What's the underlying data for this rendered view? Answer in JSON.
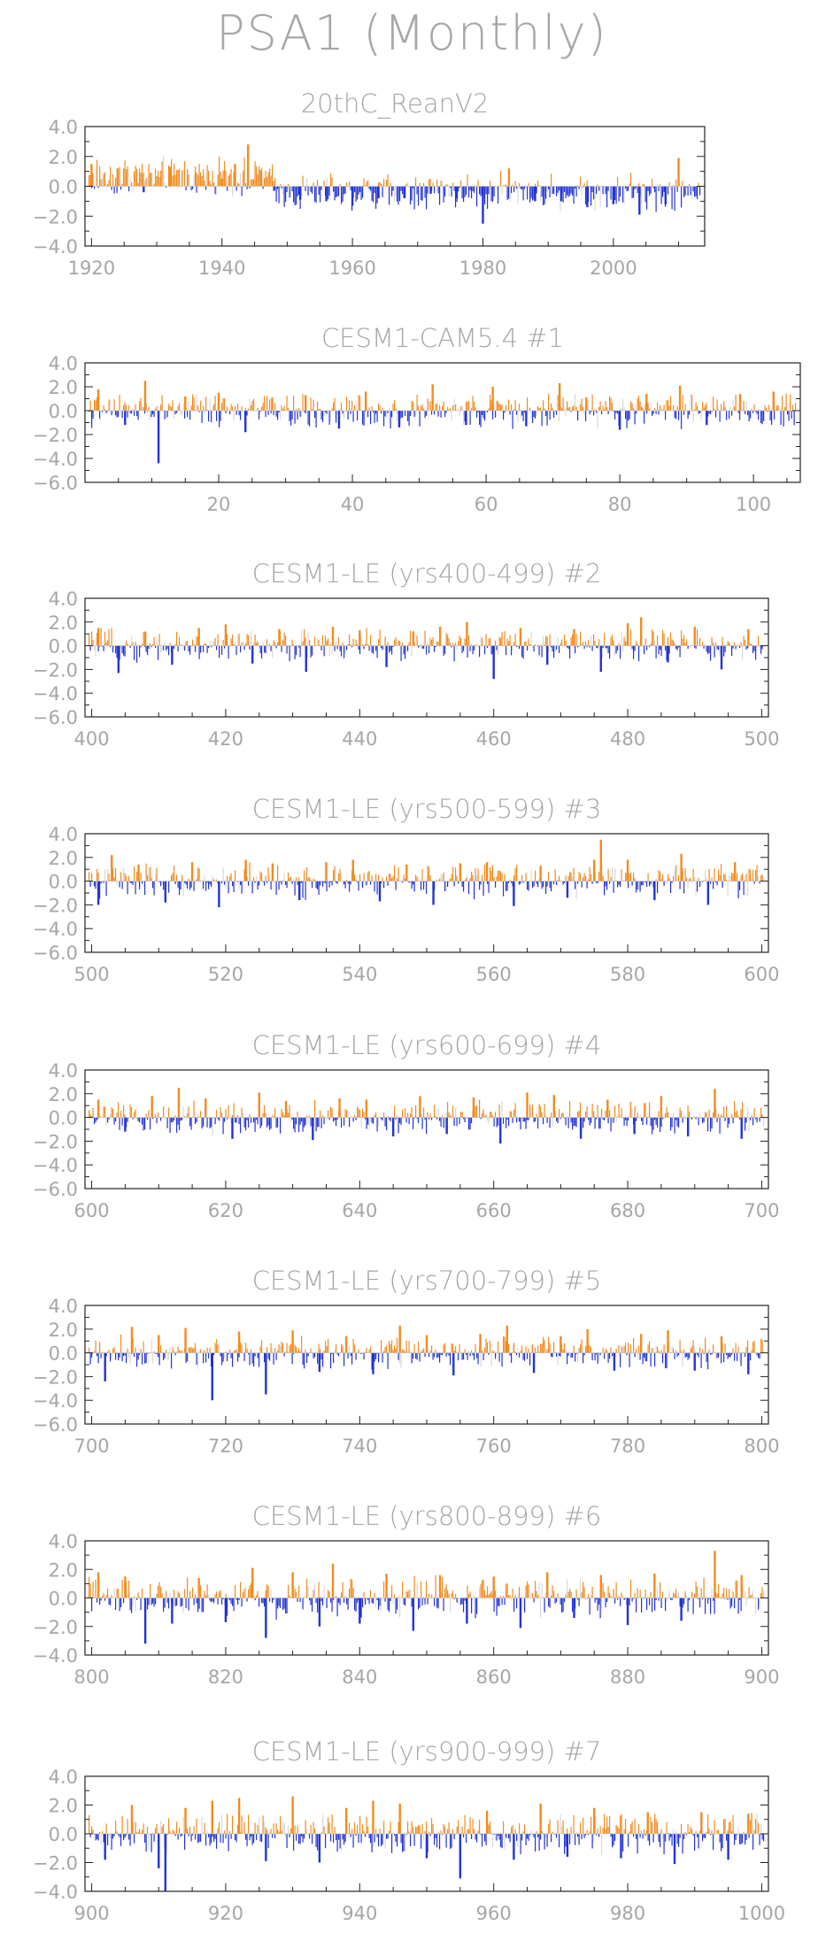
{
  "page": {
    "title": "PSA1 (Monthly)"
  },
  "colors": {
    "positive": "#f28b1e",
    "negative": "#2233d4",
    "axis": "#222222",
    "text": "#a6a6a6"
  },
  "chart_data": [
    {
      "type": "bar",
      "title": "20thC_ReanV2",
      "xlim": [
        1919,
        2014
      ],
      "ylim": [
        -4.0,
        4.0
      ],
      "yticks": [
        4.0,
        2.0,
        0.0,
        -2.0,
        -4.0
      ],
      "yticklabels": [
        "4.0",
        "2.0",
        "0.0",
        "−2.0",
        "−4.0"
      ],
      "xticks": [
        1920,
        1940,
        1960,
        1980,
        2000
      ],
      "xticklabels": [
        "1920",
        "1940",
        "1960",
        "1980",
        "2000"
      ],
      "x": [
        1920,
        1924,
        1928,
        1932,
        1936,
        1940,
        1942,
        1944,
        1946,
        1948,
        1952,
        1956,
        1960,
        1964,
        1968,
        1972,
        1976,
        1980,
        1984,
        1988,
        1992,
        1996,
        2000,
        2004,
        2008,
        2010
      ],
      "values": [
        1.5,
        1.2,
        -0.4,
        1.3,
        0.9,
        0.5,
        1.5,
        2.8,
        1.0,
        -0.3,
        -0.9,
        -1.0,
        -1.3,
        -0.8,
        -0.8,
        -0.5,
        -0.8,
        -2.5,
        1.2,
        -1.0,
        -1.0,
        -1.4,
        -1.2,
        -1.9,
        -1.2,
        1.9
      ]
    },
    {
      "type": "bar",
      "title": "CESM1-CAM5.4        #1",
      "xlim": [
        0,
        107
      ],
      "ylim": [
        -6.0,
        4.0
      ],
      "yticks": [
        4.0,
        2.0,
        0.0,
        -2.0,
        -4.0,
        -6.0
      ],
      "yticklabels": [
        "4.0",
        "2.0",
        "0.0",
        "−2.0",
        "−4.0",
        "−6.0"
      ],
      "xticks": [
        20,
        40,
        60,
        80,
        100
      ],
      "xticklabels": [
        "20",
        "40",
        "60",
        "80",
        "100"
      ],
      "x": [
        2,
        6,
        9,
        11,
        15,
        20,
        24,
        28,
        33,
        38,
        42,
        47,
        52,
        57,
        61,
        66,
        71,
        75,
        80,
        84,
        89,
        93,
        98,
        103
      ],
      "values": [
        1.8,
        -1.2,
        2.5,
        -4.4,
        1.2,
        1.5,
        -1.8,
        1.1,
        1.3,
        -1.5,
        1.6,
        -1.4,
        2.2,
        -1.2,
        2.0,
        -1.3,
        2.3,
        1.1,
        -1.6,
        1.4,
        2.1,
        -1.2,
        1.4,
        1.6
      ]
    },
    {
      "type": "bar",
      "title": "CESM1-LE (yrs400-499) #2",
      "xlim": [
        399,
        501
      ],
      "ylim": [
        -6.0,
        4.0
      ],
      "yticks": [
        4.0,
        2.0,
        0.0,
        -2.0,
        -4.0,
        -6.0
      ],
      "yticklabels": [
        "4.0",
        "2.0",
        "0.0",
        "−2.0",
        "−4.0",
        "−6.0"
      ],
      "xticks": [
        400,
        420,
        440,
        460,
        480,
        500
      ],
      "xticklabels": [
        "400",
        "420",
        "440",
        "460",
        "480",
        "500"
      ],
      "x": [
        401,
        404,
        408,
        412,
        416,
        420,
        424,
        428,
        432,
        436,
        440,
        444,
        448,
        452,
        456,
        460,
        464,
        468,
        472,
        476,
        480,
        482,
        486,
        490,
        494,
        498
      ],
      "values": [
        1.5,
        -2.3,
        1.2,
        -1.6,
        1.5,
        1.8,
        -1.5,
        1.4,
        -2.2,
        1.6,
        1.3,
        -1.8,
        1.2,
        1.6,
        2.0,
        -2.8,
        1.5,
        -1.6,
        1.4,
        -2.2,
        1.9,
        2.4,
        -1.4,
        1.6,
        -2.0,
        1.4
      ]
    },
    {
      "type": "bar",
      "title": "CESM1-LE (yrs500-599) #3",
      "xlim": [
        499,
        601
      ],
      "ylim": [
        -6.0,
        4.0
      ],
      "yticks": [
        4.0,
        2.0,
        0.0,
        -2.0,
        -4.0,
        -6.0
      ],
      "yticklabels": [
        "4.0",
        "2.0",
        "0.0",
        "−2.0",
        "−4.0",
        "−6.0"
      ],
      "xticks": [
        500,
        520,
        540,
        560,
        580,
        600
      ],
      "xticklabels": [
        "500",
        "520",
        "540",
        "560",
        "580",
        "600"
      ],
      "x": [
        501,
        503,
        507,
        511,
        515,
        519,
        523,
        527,
        531,
        535,
        539,
        543,
        547,
        551,
        555,
        559,
        563,
        567,
        571,
        575,
        576,
        580,
        584,
        588,
        592,
        596
      ],
      "values": [
        -2.0,
        2.2,
        1.4,
        -1.8,
        1.6,
        -2.2,
        1.8,
        1.5,
        -1.6,
        1.6,
        1.8,
        -1.7,
        1.4,
        -2.0,
        1.5,
        1.6,
        -2.1,
        1.3,
        -1.4,
        1.8,
        3.5,
        1.8,
        -1.6,
        2.3,
        -2.0,
        1.6
      ]
    },
    {
      "type": "bar",
      "title": "CESM1-LE (yrs600-699) #4",
      "xlim": [
        599,
        701
      ],
      "ylim": [
        -6.0,
        4.0
      ],
      "yticks": [
        4.0,
        2.0,
        0.0,
        -2.0,
        -4.0,
        -6.0
      ],
      "yticklabels": [
        "4.0",
        "2.0",
        "0.0",
        "−2.0",
        "−4.0",
        "−6.0"
      ],
      "xticks": [
        600,
        620,
        640,
        660,
        680,
        700
      ],
      "xticklabels": [
        "600",
        "620",
        "640",
        "660",
        "680",
        "700"
      ],
      "x": [
        601,
        605,
        609,
        613,
        617,
        621,
        625,
        629,
        633,
        637,
        641,
        645,
        649,
        653,
        657,
        661,
        665,
        669,
        673,
        677,
        681,
        685,
        689,
        693,
        697
      ],
      "values": [
        1.5,
        -1.2,
        1.8,
        2.5,
        1.6,
        -1.8,
        2.1,
        1.4,
        -1.9,
        1.6,
        1.5,
        -1.6,
        1.8,
        -1.4,
        1.7,
        -2.2,
        2.1,
        1.9,
        -1.8,
        1.5,
        -1.4,
        1.8,
        -1.6,
        2.4,
        -1.8
      ]
    },
    {
      "type": "bar",
      "title": "CESM1-LE (yrs700-799) #5",
      "xlim": [
        699,
        801
      ],
      "ylim": [
        -6.0,
        4.0
      ],
      "yticks": [
        4.0,
        2.0,
        0.0,
        -2.0,
        -4.0,
        -6.0
      ],
      "yticklabels": [
        "4.0",
        "2.0",
        "0.0",
        "−2.0",
        "−4.0",
        "−6.0"
      ],
      "xticks": [
        700,
        720,
        740,
        760,
        780,
        800
      ],
      "xticklabels": [
        "700",
        "720",
        "740",
        "760",
        "780",
        "800"
      ],
      "x": [
        702,
        706,
        710,
        714,
        718,
        722,
        726,
        730,
        734,
        738,
        742,
        746,
        750,
        754,
        758,
        762,
        766,
        770,
        774,
        778,
        782,
        786,
        790,
        794,
        798
      ],
      "values": [
        -2.4,
        2.2,
        1.5,
        2.1,
        -4.0,
        1.8,
        -3.5,
        1.9,
        -1.6,
        1.4,
        -1.8,
        2.3,
        1.5,
        -1.9,
        1.6,
        2.3,
        -1.7,
        1.4,
        2.0,
        -1.5,
        1.6,
        1.9,
        -1.5,
        1.4,
        -1.8
      ]
    },
    {
      "type": "bar",
      "title": "CESM1-LE (yrs800-899) #6",
      "xlim": [
        799,
        901
      ],
      "ylim": [
        -4.0,
        4.0
      ],
      "yticks": [
        4.0,
        2.0,
        0.0,
        -2.0,
        -4.0
      ],
      "yticklabels": [
        "4.0",
        "2.0",
        "0.0",
        "−2.0",
        "−4.0"
      ],
      "xticks": [
        800,
        820,
        840,
        860,
        880,
        900
      ],
      "xticklabels": [
        "800",
        "820",
        "840",
        "860",
        "880",
        "900"
      ],
      "x": [
        801,
        805,
        808,
        812,
        816,
        820,
        824,
        826,
        830,
        834,
        836,
        840,
        844,
        848,
        852,
        856,
        860,
        864,
        868,
        872,
        876,
        880,
        884,
        888,
        893,
        897
      ],
      "values": [
        1.8,
        1.5,
        -3.2,
        -1.8,
        1.4,
        -1.7,
        2.1,
        -2.8,
        1.8,
        -2.0,
        2.4,
        -1.8,
        1.7,
        -2.3,
        1.6,
        -1.8,
        1.5,
        -2.1,
        1.8,
        -1.4,
        1.6,
        -1.9,
        1.7,
        -1.6,
        3.3,
        1.6
      ]
    },
    {
      "type": "bar",
      "title": "CESM1-LE (yrs900-999) #7",
      "xlim": [
        899,
        1001
      ],
      "ylim": [
        -4.0,
        4.0
      ],
      "yticks": [
        4.0,
        2.0,
        0.0,
        -2.0,
        -4.0
      ],
      "yticklabels": [
        "4.0",
        "2.0",
        "0.0",
        "−2.0",
        "−4.0"
      ],
      "xticks": [
        900,
        920,
        940,
        960,
        980,
        1000
      ],
      "xticklabels": [
        "900",
        "920",
        "940",
        "960",
        "980",
        "1000"
      ],
      "x": [
        902,
        906,
        910,
        911,
        914,
        918,
        922,
        926,
        930,
        934,
        938,
        942,
        946,
        950,
        955,
        959,
        963,
        967,
        971,
        975,
        979,
        983,
        987,
        991,
        995,
        998
      ],
      "values": [
        -1.8,
        2.0,
        -2.4,
        -4.0,
        1.8,
        2.3,
        2.5,
        -1.9,
        2.6,
        -2.0,
        1.8,
        2.3,
        2.1,
        -1.7,
        -3.1,
        1.6,
        -1.8,
        2.1,
        -1.6,
        1.8,
        -1.7,
        1.5,
        -2.1,
        1.5,
        -1.8,
        1.4
      ]
    }
  ]
}
